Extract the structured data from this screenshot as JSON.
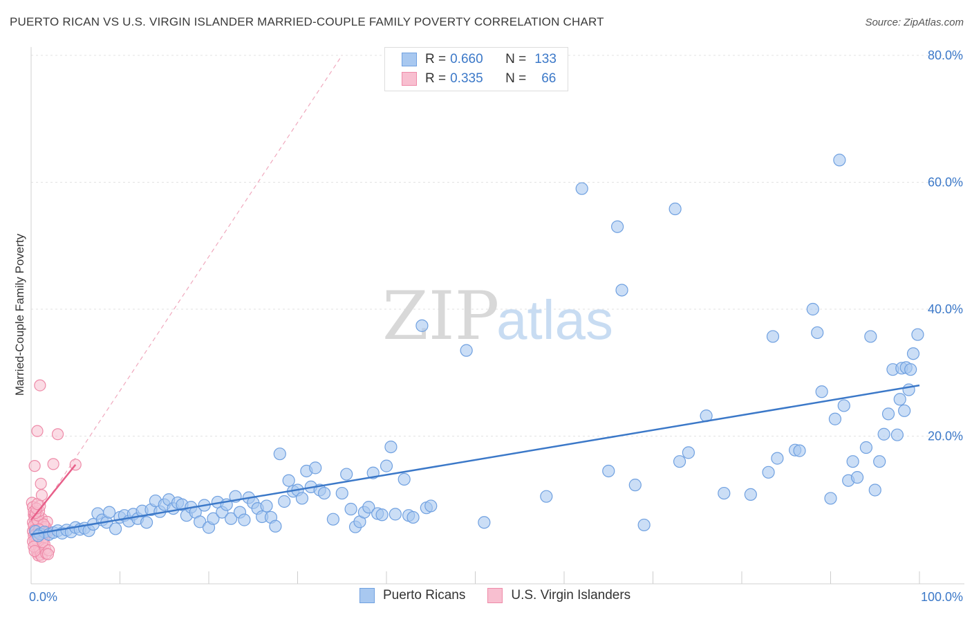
{
  "header": {
    "title": "PUERTO RICAN VS U.S. VIRGIN ISLANDER MARRIED-COUPLE FAMILY POVERTY CORRELATION CHART",
    "source": "Source: ZipAtlas.com"
  },
  "watermark": {
    "zip": "ZIP",
    "atlas": "atlas"
  },
  "legend": {
    "rows": [
      {
        "r_label": "R =",
        "r_value": "0.660",
        "n_label": "N =",
        "n_value": "133",
        "color": "#a8c8f0",
        "edge": "#6fa0e0"
      },
      {
        "r_label": "R =",
        "r_value": "0.335",
        "n_label": "N =",
        "n_value": "66",
        "color": "#f8bfd0",
        "edge": "#ee8aa8"
      }
    ]
  },
  "chart_data": {
    "type": "scatter",
    "title": "PUERTO RICAN VS U.S. VIRGIN ISLANDER MARRIED-COUPLE FAMILY POVERTY CORRELATION CHART",
    "xlabel": "",
    "ylabel": "Married-Couple Family Poverty",
    "xlim": [
      0,
      100
    ],
    "ylim": [
      0,
      80
    ],
    "x_tick_labels": [
      "0.0%",
      "100.0%"
    ],
    "y_tick_labels": [
      "20.0%",
      "40.0%",
      "60.0%",
      "80.0%"
    ],
    "y_ticks": [
      20,
      40,
      60,
      80
    ],
    "grid": true,
    "colors": {
      "blue": "#3b78c8",
      "blue_fill": "#a8c8f0",
      "pink": "#e8608a",
      "pink_fill": "#f8bfd0"
    },
    "series": [
      {
        "name": "Puerto Ricans",
        "color": "#3b78c8",
        "trend": {
          "x": [
            0,
            100
          ],
          "y": [
            4.5,
            28.0
          ]
        },
        "points": [
          [
            0.5,
            5.0
          ],
          [
            1.0,
            4.6
          ],
          [
            1.5,
            4.9
          ],
          [
            2.0,
            4.5
          ],
          [
            2.5,
            4.8
          ],
          [
            3.0,
            5.1
          ],
          [
            3.5,
            4.7
          ],
          [
            4.0,
            5.2
          ],
          [
            4.5,
            4.9
          ],
          [
            5.0,
            5.6
          ],
          [
            5.5,
            5.3
          ],
          [
            6.0,
            5.5
          ],
          [
            6.5,
            5.1
          ],
          [
            7.0,
            6.1
          ],
          [
            7.5,
            7.8
          ],
          [
            8.0,
            6.8
          ],
          [
            8.5,
            6.4
          ],
          [
            8.8,
            8.0
          ],
          [
            9.5,
            5.4
          ],
          [
            10.0,
            7.2
          ],
          [
            10.5,
            7.5
          ],
          [
            11.0,
            6.6
          ],
          [
            11.5,
            7.7
          ],
          [
            12.0,
            7.0
          ],
          [
            12.5,
            8.2
          ],
          [
            13.0,
            6.4
          ],
          [
            13.5,
            8.4
          ],
          [
            14.0,
            9.8
          ],
          [
            14.5,
            8.1
          ],
          [
            15.0,
            9.2
          ],
          [
            15.5,
            10.0
          ],
          [
            16.0,
            8.6
          ],
          [
            16.5,
            9.5
          ],
          [
            17.0,
            9.2
          ],
          [
            17.5,
            7.5
          ],
          [
            18.0,
            8.8
          ],
          [
            18.5,
            8.0
          ],
          [
            19.0,
            6.5
          ],
          [
            19.5,
            9.1
          ],
          [
            20.0,
            5.6
          ],
          [
            20.5,
            7.0
          ],
          [
            21.0,
            9.6
          ],
          [
            21.5,
            8.0
          ],
          [
            22.0,
            9.2
          ],
          [
            22.5,
            7.0
          ],
          [
            23.0,
            10.5
          ],
          [
            23.5,
            8.0
          ],
          [
            24.0,
            6.8
          ],
          [
            24.5,
            10.3
          ],
          [
            25.0,
            9.5
          ],
          [
            25.5,
            8.6
          ],
          [
            26.0,
            7.3
          ],
          [
            26.5,
            9.0
          ],
          [
            27.0,
            7.2
          ],
          [
            27.5,
            5.8
          ],
          [
            28.0,
            17.2
          ],
          [
            28.5,
            9.7
          ],
          [
            29.0,
            13.0
          ],
          [
            29.5,
            11.3
          ],
          [
            30.0,
            11.5
          ],
          [
            30.5,
            10.2
          ],
          [
            31.0,
            14.5
          ],
          [
            31.5,
            12.0
          ],
          [
            32.0,
            15.0
          ],
          [
            32.5,
            11.5
          ],
          [
            33.0,
            11.0
          ],
          [
            34.0,
            6.9
          ],
          [
            35.0,
            11.0
          ],
          [
            35.5,
            14.0
          ],
          [
            36.0,
            8.5
          ],
          [
            36.5,
            5.7
          ],
          [
            37.0,
            6.5
          ],
          [
            37.5,
            8.0
          ],
          [
            38.0,
            8.8
          ],
          [
            38.5,
            14.2
          ],
          [
            39.0,
            7.8
          ],
          [
            39.5,
            7.6
          ],
          [
            40.0,
            15.3
          ],
          [
            40.5,
            18.3
          ],
          [
            41.0,
            7.7
          ],
          [
            42.0,
            13.2
          ],
          [
            42.5,
            7.5
          ],
          [
            43.0,
            7.2
          ],
          [
            44.0,
            37.4
          ],
          [
            44.5,
            8.7
          ],
          [
            45.0,
            9.0
          ],
          [
            49.0,
            33.5
          ],
          [
            51.0,
            6.4
          ],
          [
            58.0,
            10.5
          ],
          [
            62.0,
            59.0
          ],
          [
            65.0,
            14.5
          ],
          [
            66.0,
            53.0
          ],
          [
            66.5,
            43.0
          ],
          [
            68.0,
            12.3
          ],
          [
            69.0,
            6.0
          ],
          [
            72.5,
            55.8
          ],
          [
            73.0,
            16.0
          ],
          [
            74.0,
            17.4
          ],
          [
            76.0,
            23.2
          ],
          [
            78.0,
            11.0
          ],
          [
            81.0,
            10.8
          ],
          [
            83.0,
            14.3
          ],
          [
            83.5,
            35.7
          ],
          [
            84.0,
            16.5
          ],
          [
            86.0,
            17.8
          ],
          [
            86.5,
            17.7
          ],
          [
            88.0,
            40.0
          ],
          [
            88.5,
            36.3
          ],
          [
            89.0,
            27.0
          ],
          [
            90.0,
            10.2
          ],
          [
            90.5,
            22.7
          ],
          [
            91.0,
            63.5
          ],
          [
            91.5,
            24.8
          ],
          [
            92.0,
            13.0
          ],
          [
            92.5,
            16.0
          ],
          [
            93.0,
            13.5
          ],
          [
            94.0,
            18.2
          ],
          [
            94.5,
            35.7
          ],
          [
            95.0,
            11.5
          ],
          [
            95.5,
            16.0
          ],
          [
            96.0,
            20.3
          ],
          [
            96.5,
            23.5
          ],
          [
            97.0,
            30.5
          ],
          [
            97.5,
            20.2
          ],
          [
            97.8,
            25.8
          ],
          [
            98.0,
            30.7
          ],
          [
            98.3,
            24.0
          ],
          [
            98.5,
            30.8
          ],
          [
            98.8,
            27.3
          ],
          [
            99.0,
            30.5
          ],
          [
            99.3,
            33.0
          ],
          [
            99.8,
            36.0
          ],
          [
            0.8,
            4.3
          ]
        ]
      },
      {
        "name": "U.S. Virgin Islanders",
        "color": "#e8608a",
        "trend": {
          "x": [
            0,
            5.0
          ],
          "y": [
            6.8,
            15.5
          ]
        },
        "ref_line": {
          "x": [
            0,
            35
          ],
          "y": [
            6.0,
            80
          ]
        },
        "points": [
          [
            0.1,
            9.5
          ],
          [
            0.2,
            8.8
          ],
          [
            0.3,
            7.6
          ],
          [
            0.4,
            6.9
          ],
          [
            0.5,
            6.0
          ],
          [
            0.6,
            5.5
          ],
          [
            0.7,
            4.8
          ],
          [
            0.2,
            5.0
          ],
          [
            0.3,
            4.3
          ],
          [
            0.4,
            3.6
          ],
          [
            0.5,
            2.8
          ],
          [
            0.6,
            2.1
          ],
          [
            0.7,
            1.6
          ],
          [
            0.8,
            1.2
          ],
          [
            0.9,
            4.0
          ],
          [
            1.0,
            5.2
          ],
          [
            1.1,
            6.3
          ],
          [
            1.2,
            7.0
          ],
          [
            0.3,
            8.1
          ],
          [
            0.4,
            7.3
          ],
          [
            0.5,
            5.8
          ],
          [
            0.6,
            4.6
          ],
          [
            0.7,
            3.9
          ],
          [
            0.8,
            3.2
          ],
          [
            0.9,
            2.4
          ],
          [
            1.0,
            1.8
          ],
          [
            1.1,
            1.3
          ],
          [
            1.2,
            1.0
          ],
          [
            1.3,
            5.5
          ],
          [
            1.4,
            4.4
          ],
          [
            1.5,
            3.0
          ],
          [
            1.6,
            2.2
          ],
          [
            1.7,
            1.5
          ],
          [
            1.8,
            6.5
          ],
          [
            1.9,
            5.0
          ],
          [
            0.2,
            6.4
          ],
          [
            0.3,
            5.9
          ],
          [
            0.4,
            5.2
          ],
          [
            0.5,
            4.5
          ],
          [
            0.6,
            3.7
          ],
          [
            0.7,
            6.8
          ],
          [
            0.8,
            7.5
          ],
          [
            0.9,
            8.2
          ],
          [
            1.0,
            9.0
          ],
          [
            0.2,
            3.4
          ],
          [
            0.3,
            2.6
          ],
          [
            0.4,
            1.9
          ],
          [
            0.5,
            7.9
          ],
          [
            0.6,
            8.6
          ],
          [
            0.7,
            9.3
          ],
          [
            1.1,
            12.5
          ],
          [
            1.2,
            10.7
          ],
          [
            1.0,
            28.0
          ],
          [
            0.7,
            20.8
          ],
          [
            3.0,
            20.3
          ],
          [
            0.4,
            15.3
          ],
          [
            2.5,
            15.6
          ],
          [
            5.0,
            15.5
          ],
          [
            1.5,
            4.1
          ],
          [
            1.6,
            5.7
          ],
          [
            1.3,
            3.3
          ],
          [
            2.0,
            2.0
          ],
          [
            1.9,
            1.4
          ],
          [
            1.4,
            6.1
          ],
          [
            0.9,
            5.3
          ],
          [
            1.8,
            4.8
          ]
        ]
      }
    ]
  },
  "bottom_legend": {
    "items": [
      "Puerto Ricans",
      "U.S. Virgin Islanders"
    ]
  }
}
